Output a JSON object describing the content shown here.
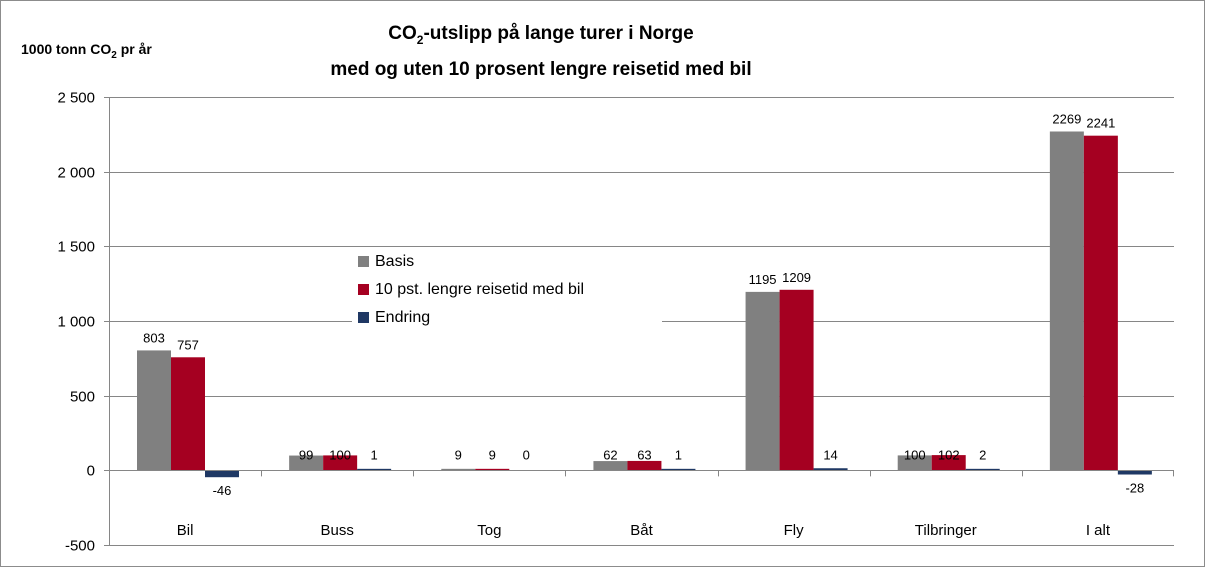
{
  "chart_data": {
    "type": "bar",
    "title_line1_main": "CO",
    "title_line1_sub": "2",
    "title_line1_rest": "-utslipp på lange turer i Norge",
    "title_line2": "med og uten 10 prosent  lengre reisetid med bil",
    "ylabel_main": "1000 tonn CO",
    "ylabel_sub": "2",
    "ylabel_rest": " pr år",
    "categories": [
      "Bil",
      "Buss",
      "Tog",
      "Båt",
      "Fly",
      "Tilbringer",
      "I alt"
    ],
    "series": [
      {
        "name": "Basis",
        "color": "#808080",
        "values": [
          803,
          99,
          9,
          62,
          1195,
          100,
          2269
        ]
      },
      {
        "name": "10 pst. lengre reisetid med bil",
        "color": "#a50021",
        "values": [
          757,
          100,
          9,
          63,
          1209,
          102,
          2241
        ]
      },
      {
        "name": "Endring",
        "color": "#1f3864",
        "values": [
          -46,
          1,
          0,
          1,
          14,
          2,
          -28
        ]
      }
    ],
    "ylim": [
      -500,
      2500
    ],
    "yticks": [
      -500,
      0,
      500,
      1000,
      1500,
      2000,
      2500
    ],
    "ytick_labels": [
      "-500",
      "0",
      "500",
      "1 000",
      "1 500",
      "2 000",
      "2 500"
    ],
    "grid": true,
    "legend_position": "center"
  }
}
